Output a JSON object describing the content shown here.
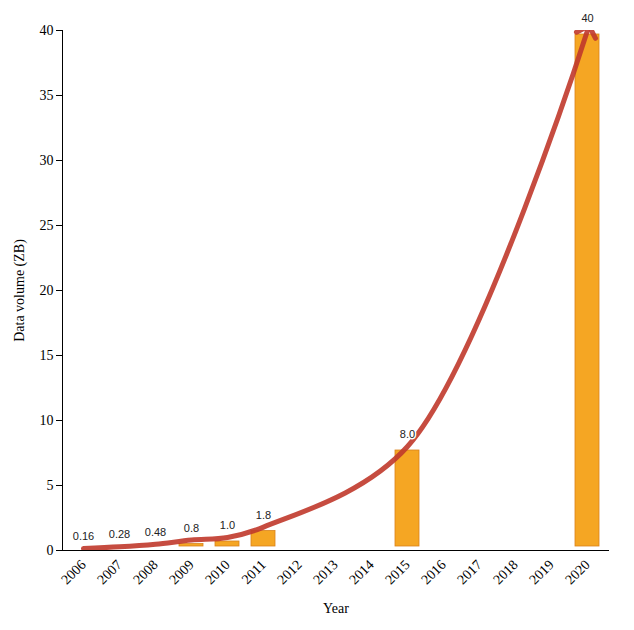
{
  "chart_data": {
    "type": "bar",
    "x_label": "Year",
    "y_label": "Data volume (ZB)",
    "categories": [
      "2006",
      "2007",
      "2008",
      "2009",
      "2010",
      "2011",
      "2012",
      "2013",
      "2014",
      "2015",
      "2016",
      "2017",
      "2018",
      "2019",
      "2020"
    ],
    "values": [
      0.16,
      0.28,
      0.48,
      0.8,
      1.0,
      1.8,
      null,
      null,
      null,
      8.0,
      null,
      null,
      null,
      null,
      40
    ],
    "value_labels": [
      "0.16",
      "0.28",
      "0.48",
      "0.8",
      "1.0",
      "1.8",
      null,
      null,
      null,
      "8.0",
      null,
      null,
      null,
      null,
      "40"
    ],
    "color": "#f5a623",
    "ylim": [
      0,
      40
    ],
    "yticks": [
      0,
      5,
      10,
      15,
      20,
      25,
      30,
      35,
      40
    ],
    "data_labels": true,
    "grid": false
  }
}
